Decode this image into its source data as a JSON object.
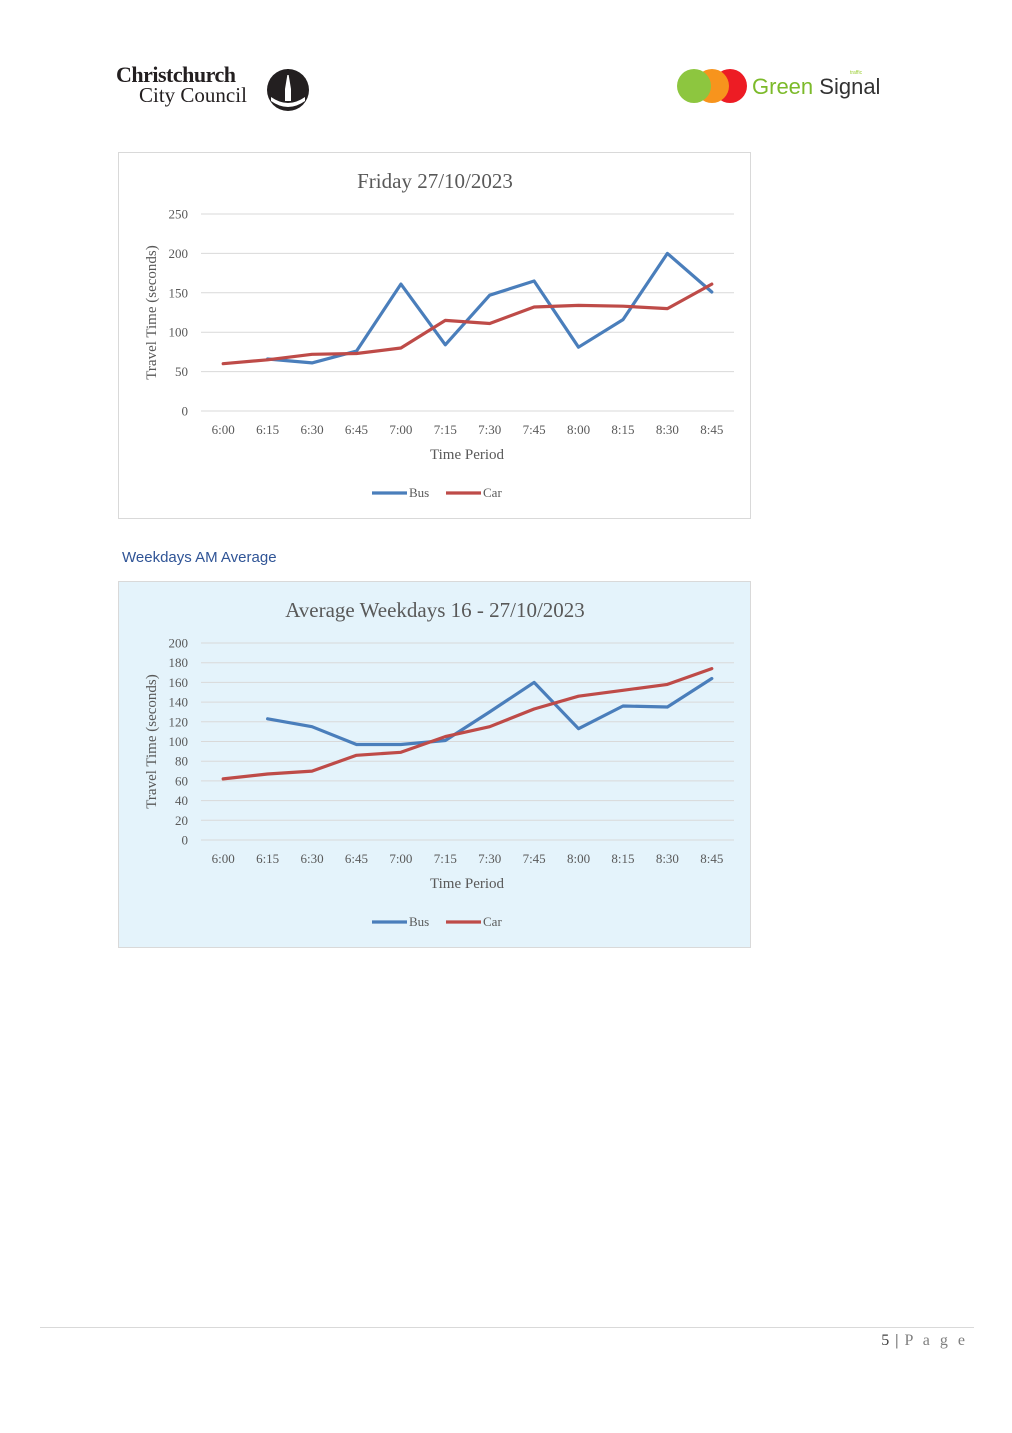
{
  "header": {
    "ccc_logo": {
      "line1": "Christchurch",
      "line2": "City Council"
    },
    "gs_logo": {
      "word1": "Green",
      "word2": "Signal",
      "tag": "traffic",
      "dot_colors": [
        "#8dc63f",
        "#f7941d",
        "#ed1c24"
      ]
    }
  },
  "colors": {
    "bus": "#4a7ebb",
    "car": "#be4b48",
    "heading": "#2f5496",
    "chart2_bg": "#e4f3fb"
  },
  "section_heading": "Weekdays AM Average",
  "footer": {
    "page_num": "5",
    "separator": "|",
    "page_label": "P a g e"
  },
  "chart_data": [
    {
      "type": "line",
      "title": "Friday 27/10/2023",
      "xlabel": "Time Period",
      "ylabel": "Travel Time (seconds)",
      "ylim": [
        0,
        250
      ],
      "ytick_step": 50,
      "categories": [
        "6:00",
        "6:15",
        "6:30",
        "6:45",
        "7:00",
        "7:15",
        "7:30",
        "7:45",
        "8:00",
        "8:15",
        "8:30",
        "8:45"
      ],
      "series": [
        {
          "name": "Bus",
          "color": "#4a7ebb",
          "values": [
            null,
            66,
            61,
            76,
            161,
            84,
            147,
            165,
            81,
            116,
            200,
            151
          ]
        },
        {
          "name": "Car",
          "color": "#be4b48",
          "values": [
            60,
            65,
            72,
            73,
            80,
            115,
            111,
            132,
            134,
            133,
            130,
            161
          ]
        }
      ],
      "legend": "bottom"
    },
    {
      "type": "line",
      "title": "Average Weekdays 16 - 27/10/2023",
      "xlabel": "Time Period",
      "ylabel": "Travel Time (seconds)",
      "ylim": [
        0,
        200
      ],
      "ytick_step": 20,
      "categories": [
        "6:00",
        "6:15",
        "6:30",
        "6:45",
        "7:00",
        "7:15",
        "7:30",
        "7:45",
        "8:00",
        "8:15",
        "8:30",
        "8:45"
      ],
      "series": [
        {
          "name": "Bus",
          "color": "#4a7ebb",
          "values": [
            null,
            123,
            115,
            97,
            97,
            101,
            130,
            160,
            113,
            136,
            135,
            164
          ]
        },
        {
          "name": "Car",
          "color": "#be4b48",
          "values": [
            62,
            67,
            70,
            86,
            89,
            105,
            115,
            133,
            146,
            152,
            158,
            174
          ]
        }
      ],
      "legend": "bottom"
    }
  ]
}
